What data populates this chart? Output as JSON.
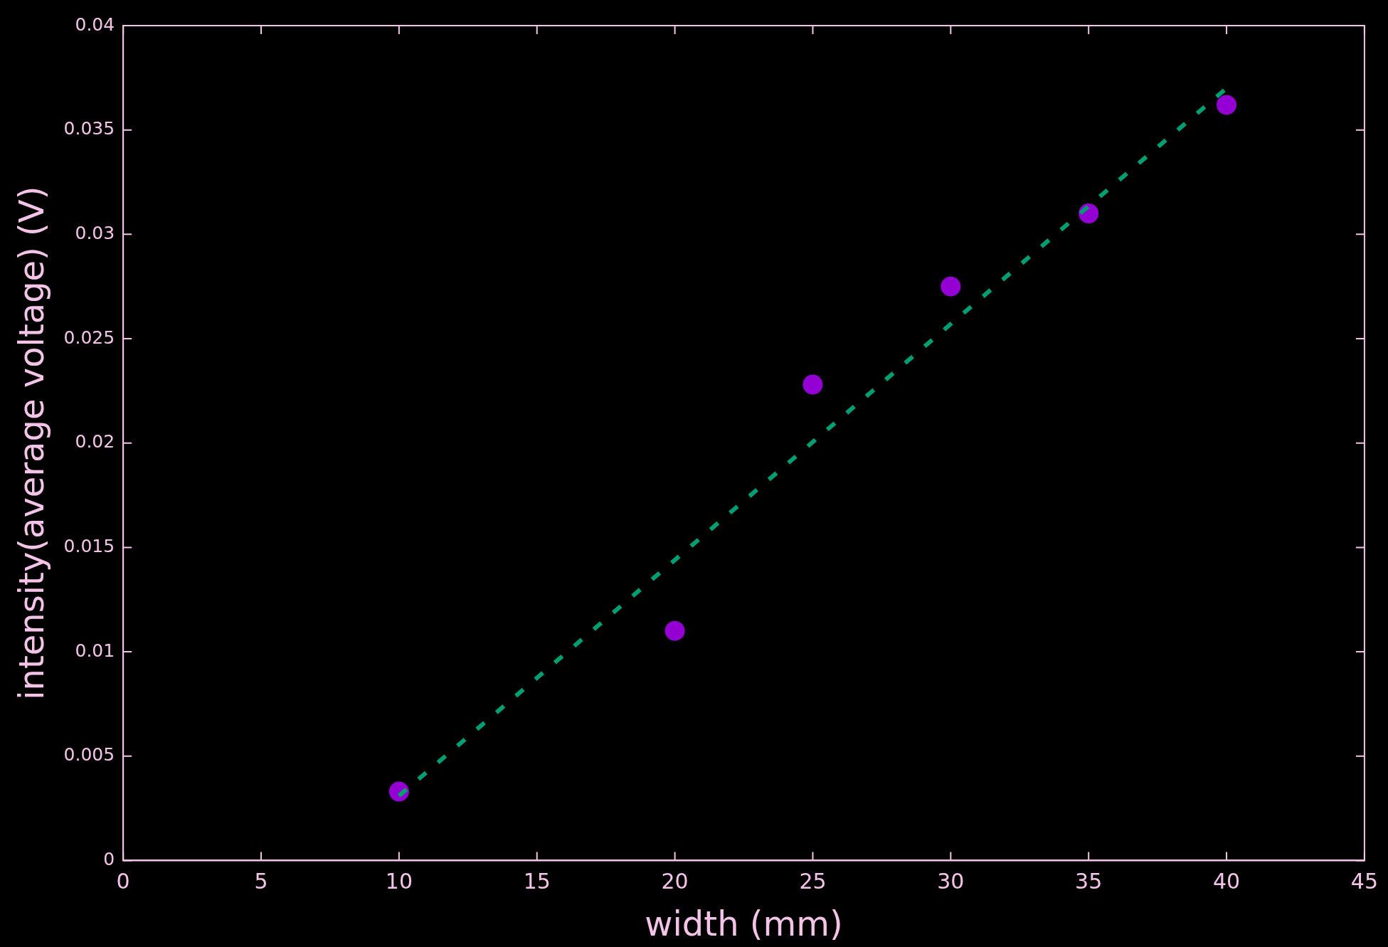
{
  "chart_data": {
    "type": "scatter",
    "xlabel": "width (mm)",
    "ylabel": "intensity(average voltage) (V)",
    "xlim": [
      0,
      45
    ],
    "xticks": [
      0,
      5,
      10,
      15,
      20,
      25,
      30,
      35,
      40,
      45
    ],
    "ylim": [
      0,
      0.04
    ],
    "yticks": [
      0,
      0.005,
      0.01,
      0.015,
      0.02,
      0.025,
      0.03,
      0.035,
      0.04
    ],
    "grid": false,
    "legend": false,
    "marker": "circle",
    "series": [
      {
        "color": "#9400d3",
        "x": [
          10,
          20,
          25,
          30,
          35,
          40
        ],
        "values": [
          0.0033,
          0.011,
          0.0228,
          0.0275,
          0.031,
          0.0362
        ]
      },
      {
        "type": "line",
        "color": "#009e73",
        "line_style": "dashed",
        "marker": "none",
        "x": [
          10,
          40
        ],
        "values": [
          0.0031,
          0.037
        ]
      }
    ]
  }
}
